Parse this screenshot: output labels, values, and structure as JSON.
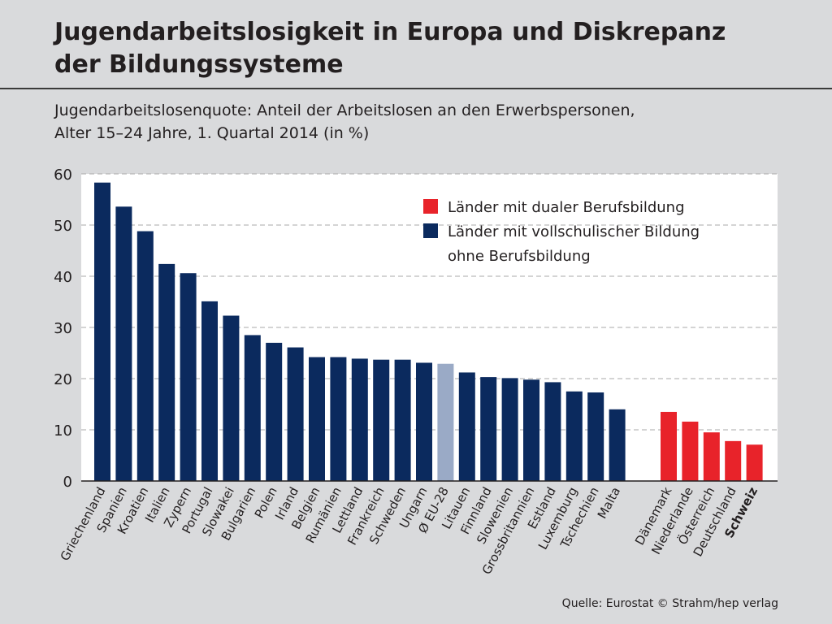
{
  "header": {
    "title_line1": "Jugendarbeitslosigkeit in Europa und Diskrepanz",
    "title_line2": "der Bildungssysteme",
    "subtitle_line1": "Jugendarbeitslosenquote: Anteil der Arbeitslosen an den Erwerbspersonen,",
    "subtitle_line2": "Alter 15–24 Jahre, 1. Quartal 2014 (in %)"
  },
  "footer": {
    "source": "Quelle: Eurostat  © Strahm/hep verlag"
  },
  "colors": {
    "vollschulisch": "#0b2a5e",
    "dual": "#e8232a",
    "eu_average": "#9aaac6",
    "plot_bg": "#ffffff",
    "grid": "#aaaaaa"
  },
  "chart_data": {
    "type": "bar",
    "ylim": [
      0,
      60
    ],
    "yticks": [
      0,
      10,
      20,
      30,
      40,
      50,
      60
    ],
    "grid": "horizontal-dashed",
    "legend_position": "top-right",
    "legend": [
      {
        "label": "Länder mit dualer Berufsbildung",
        "color": "#e8232a"
      },
      {
        "label": "Länder mit vollschulischer Bildung",
        "color": "#0b2a5e"
      },
      {
        "label": "ohne Berufsbildung",
        "color": ""
      }
    ],
    "categories": [
      "Griechenland",
      "Spanien",
      "Kroatien",
      "Italien",
      "Zypern",
      "Portugal",
      "Slowakei",
      "Bulgarien",
      "Polen",
      "Irland",
      "Belgien",
      "Rumänien",
      "Lettland",
      "Frankreich",
      "Schweden",
      "Ungarn",
      "Ø EU-28",
      "Litauen",
      "Finnland",
      "Slowenien",
      "Grossbritannien",
      "Estland",
      "Luxemburg",
      "Tschechien",
      "Malta",
      "Dänemark",
      "Niederlande",
      "Österreich",
      "Deutschland",
      "Schweiz"
    ],
    "values": [
      58.3,
      53.6,
      48.8,
      42.4,
      40.6,
      35.1,
      32.3,
      28.5,
      27.0,
      26.1,
      24.2,
      24.2,
      23.9,
      23.7,
      23.7,
      23.1,
      22.9,
      21.2,
      20.3,
      20.1,
      19.8,
      19.3,
      17.5,
      17.3,
      14.0,
      13.5,
      11.6,
      9.5,
      7.8,
      7.1
    ],
    "groups": [
      "vollschulisch",
      "vollschulisch",
      "vollschulisch",
      "vollschulisch",
      "vollschulisch",
      "vollschulisch",
      "vollschulisch",
      "vollschulisch",
      "vollschulisch",
      "vollschulisch",
      "vollschulisch",
      "vollschulisch",
      "vollschulisch",
      "vollschulisch",
      "vollschulisch",
      "vollschulisch",
      "eu_average",
      "vollschulisch",
      "vollschulisch",
      "vollschulisch",
      "vollschulisch",
      "vollschulisch",
      "vollschulisch",
      "vollschulisch",
      "vollschulisch",
      "dual",
      "dual",
      "dual",
      "dual",
      "dual"
    ],
    "bold_categories": [
      "Schweiz"
    ]
  }
}
